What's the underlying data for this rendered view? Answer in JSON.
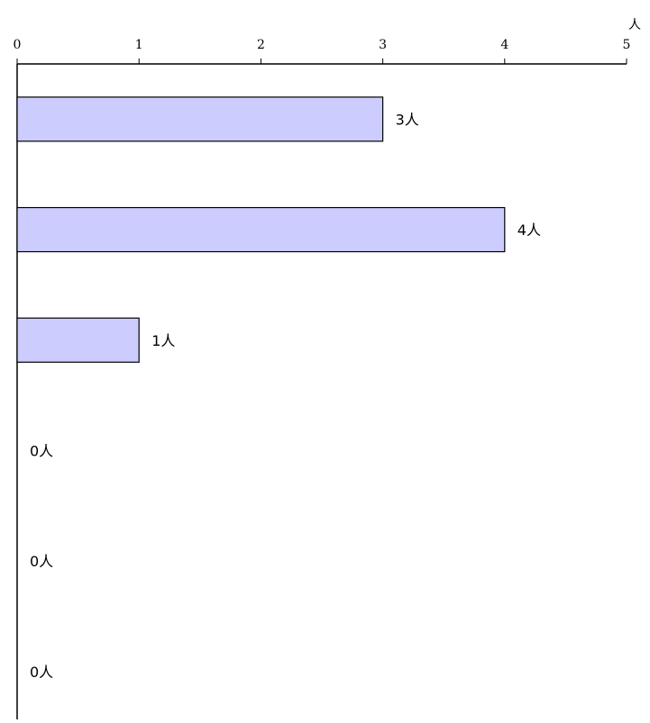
{
  "chart_data": {
    "type": "bar",
    "orientation": "horizontal",
    "categories": [
      "",
      "",
      "",
      "",
      "",
      ""
    ],
    "values": [
      3,
      4,
      1,
      0,
      0,
      0
    ],
    "value_labels": [
      "3人",
      "4人",
      "1人",
      "0人",
      "0人",
      "0人"
    ],
    "unit": "人",
    "xlim": [
      0,
      5
    ],
    "x_ticks": [
      "0",
      "1",
      "2",
      "3",
      "4",
      "5"
    ],
    "axis_position": "top",
    "grid": false,
    "bar_color": "#ccccff",
    "bar_stroke": "#000000"
  }
}
